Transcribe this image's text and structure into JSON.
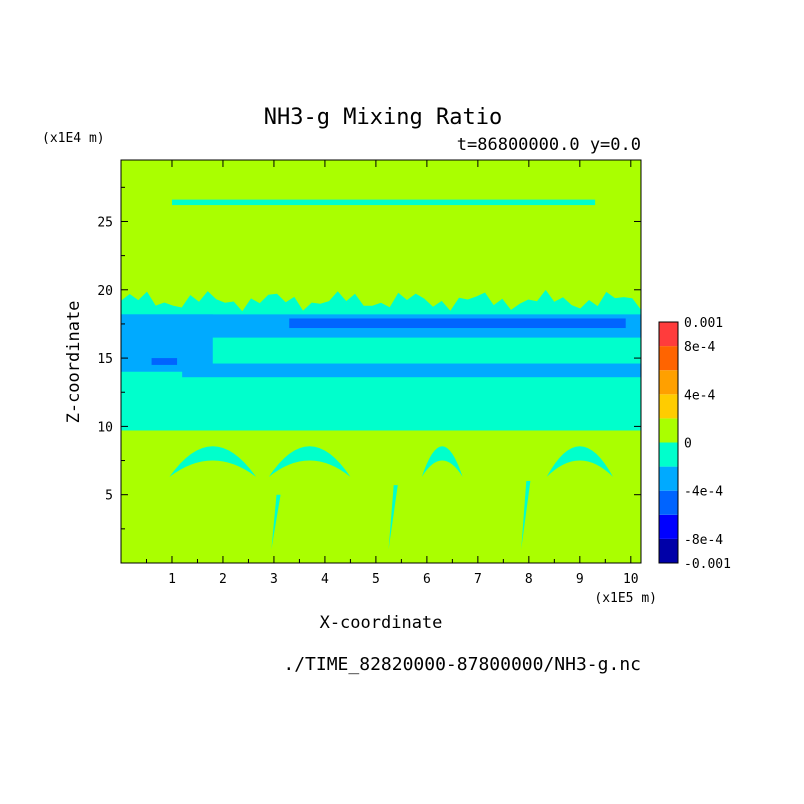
{
  "chart_data": {
    "type": "heatmap",
    "title": "NH3-g Mixing Ratio",
    "subtitle": "t=86800000.0 y=0.0",
    "xlabel": "X-coordinate",
    "ylabel": "Z-coordinate",
    "x_unit": "(x1E5 m)",
    "y_unit": "(x1E4 m)",
    "xlim": [
      0,
      10.2
    ],
    "ylim": [
      0,
      29.5
    ],
    "x_ticks": [
      1,
      2,
      3,
      4,
      5,
      6,
      7,
      8,
      9,
      10
    ],
    "y_ticks": [
      5,
      10,
      15,
      20,
      25
    ],
    "footer": "./TIME_82820000-87800000/NH3-g.nc",
    "colorbar": {
      "min": -0.001,
      "max": 0.001,
      "tick_labels": [
        "0.001",
        "8e-4",
        "4e-4",
        "0",
        "-4e-4",
        "-8e-4",
        "-0.001"
      ],
      "tick_values": [
        0.001,
        0.0008,
        0.0004,
        0,
        -0.0004,
        -0.0008,
        -0.001
      ],
      "levels": [
        {
          "lo": -0.001,
          "hi": -0.0008,
          "color": "#0000a8"
        },
        {
          "lo": -0.0008,
          "hi": -0.0006,
          "color": "#0000ff"
        },
        {
          "lo": -0.0006,
          "hi": -0.0004,
          "color": "#0064ff"
        },
        {
          "lo": -0.0004,
          "hi": -0.0002,
          "color": "#00aaff"
        },
        {
          "lo": -0.0002,
          "hi": 0,
          "color": "#00ffcc"
        },
        {
          "lo": 0,
          "hi": 0.0002,
          "color": "#aaff00"
        },
        {
          "lo": 0.0002,
          "hi": 0.0004,
          "color": "#ffcc00"
        },
        {
          "lo": 0.0004,
          "hi": 0.0006,
          "color": "#ffa000"
        },
        {
          "lo": 0.0006,
          "hi": 0.0008,
          "color": "#ff6400"
        },
        {
          "lo": 0.0008,
          "hi": 0.001,
          "color": "#ff3c3c"
        }
      ]
    },
    "field_regions": [
      {
        "level": 5,
        "x": [
          0,
          10.2
        ],
        "z": [
          0,
          29.5
        ]
      },
      {
        "level": 4,
        "x": [
          0,
          10.2
        ],
        "z": [
          9.7,
          18.3
        ]
      },
      {
        "level": 3,
        "x": [
          0,
          10.2
        ],
        "z": [
          16.5,
          18.2
        ]
      },
      {
        "level": 3,
        "x": [
          0,
          1.8
        ],
        "z": [
          14.0,
          18.2
        ]
      },
      {
        "level": 3,
        "x": [
          1.2,
          10.2
        ],
        "z": [
          13.6,
          14.6
        ]
      },
      {
        "level": 2,
        "x": [
          3.3,
          9.9
        ],
        "z": [
          17.2,
          17.9
        ]
      },
      {
        "level": 2,
        "x": [
          0.6,
          1.1
        ],
        "z": [
          14.5,
          15.0
        ]
      },
      {
        "level": 4,
        "x": [
          1.0,
          9.3
        ],
        "z": [
          26.2,
          26.6
        ]
      }
    ]
  }
}
